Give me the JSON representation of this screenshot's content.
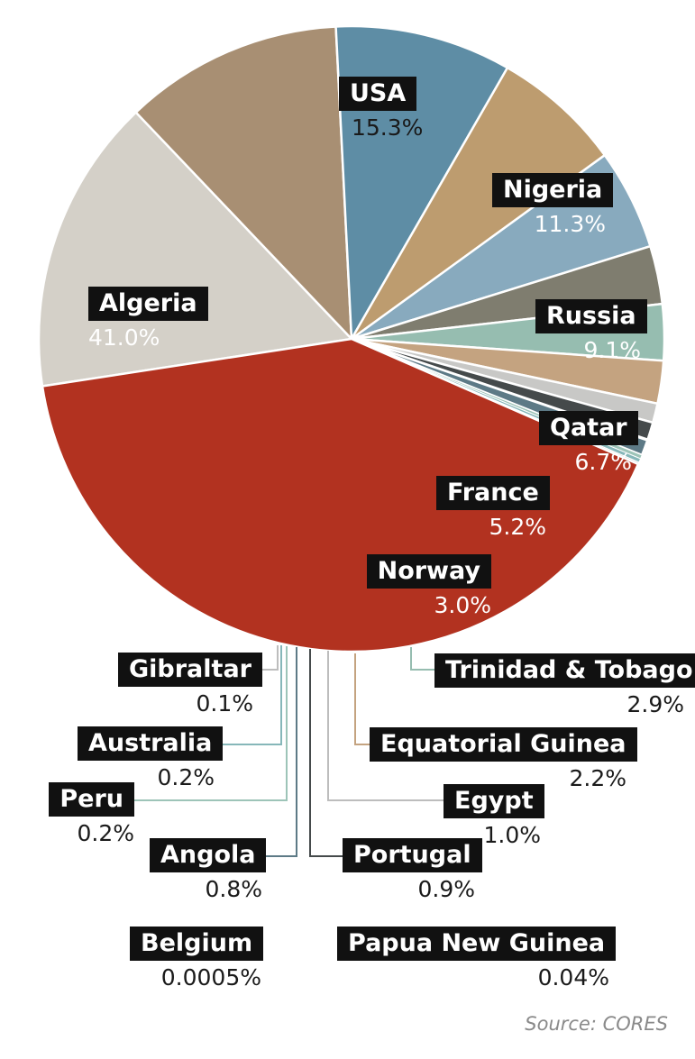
{
  "chart_data": {
    "type": "pie",
    "slices": [
      {
        "name": "USA",
        "value": 15.3,
        "label": "15.3%",
        "color": "#d4d0c8"
      },
      {
        "name": "Nigeria",
        "value": 11.3,
        "label": "11.3%",
        "color": "#a88f73"
      },
      {
        "name": "Russia",
        "value": 9.1,
        "label": "9.1%",
        "color": "#5e8da5"
      },
      {
        "name": "Qatar",
        "value": 6.7,
        "label": "6.7%",
        "color": "#bd9c6f"
      },
      {
        "name": "France",
        "value": 5.2,
        "label": "5.2%",
        "color": "#88aabe"
      },
      {
        "name": "Norway",
        "value": 3.0,
        "label": "3.0%",
        "color": "#7f7d6f"
      },
      {
        "name": "Trinidad & Tobago",
        "value": 2.9,
        "label": "2.9%",
        "color": "#96bdb0"
      },
      {
        "name": "Equatorial Guinea",
        "value": 2.2,
        "label": "2.2%",
        "color": "#c4a380"
      },
      {
        "name": "Egypt",
        "value": 1.0,
        "label": "1.0%",
        "color": "#c8c8c6"
      },
      {
        "name": "Portugal",
        "value": 0.9,
        "label": "0.9%",
        "color": "#454a4b"
      },
      {
        "name": "Papua New Guinea",
        "value": 0.04,
        "label": "0.04%",
        "color": "#a0a0a0"
      },
      {
        "name": "Angola",
        "value": 0.8,
        "label": "0.8%",
        "color": "#5d7a86"
      },
      {
        "name": "Peru",
        "value": 0.2,
        "label": "0.2%",
        "color": "#9dc4b8"
      },
      {
        "name": "Australia",
        "value": 0.2,
        "label": "0.2%",
        "color": "#86b7b9"
      },
      {
        "name": "Belgium",
        "value": 0.0005,
        "label": "0.0005%",
        "color": "#cccccc"
      },
      {
        "name": "Gibraltar",
        "value": 0.1,
        "label": "0.1%",
        "color": "#c9c9c9"
      },
      {
        "name": "Algeria",
        "value": 41.0,
        "label": "41.0%",
        "color": "#b23220"
      }
    ],
    "source": "Source: CORES"
  }
}
